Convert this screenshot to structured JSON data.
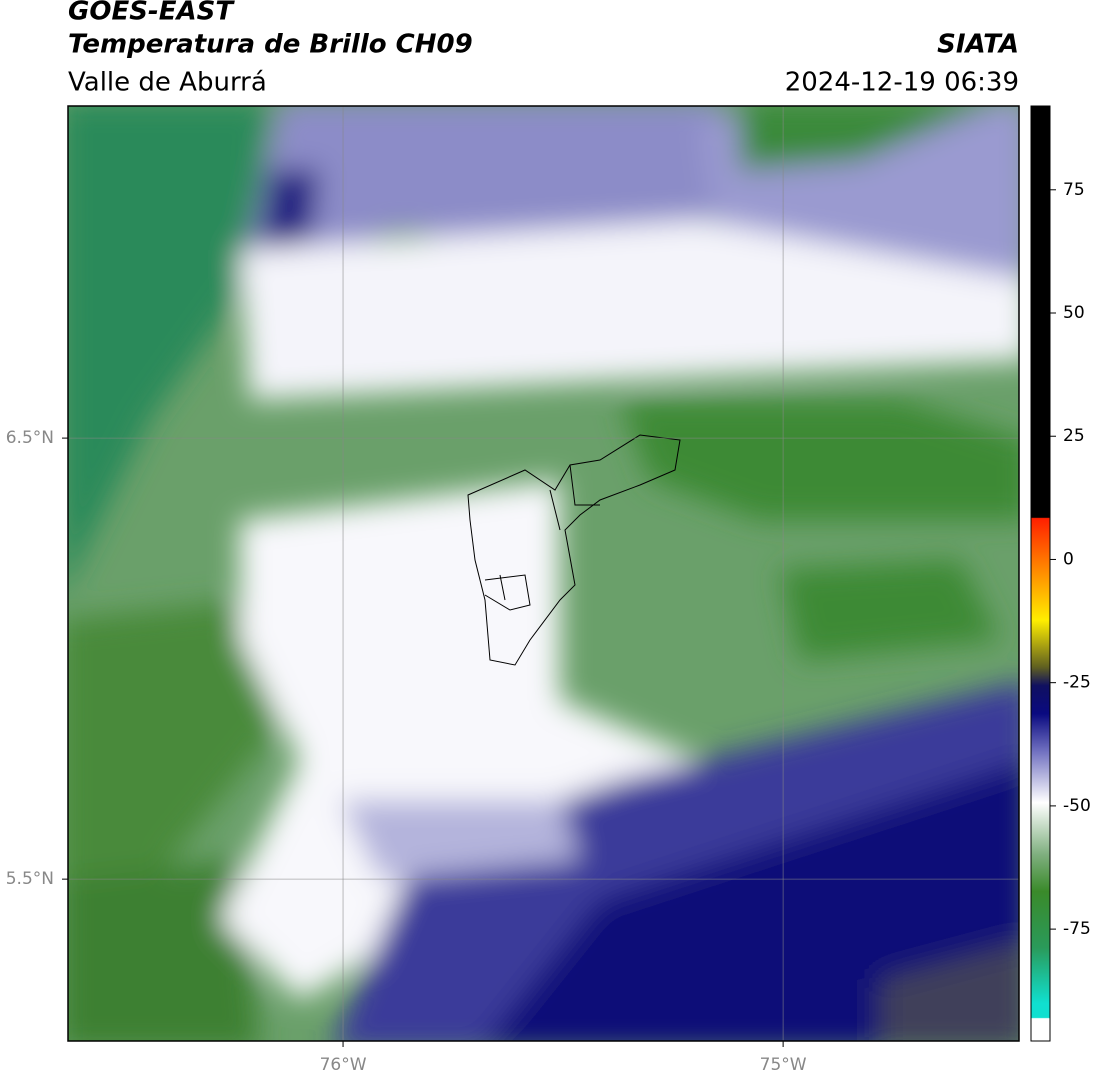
{
  "header": {
    "title": "GOES-EAST",
    "subtitle": "Temperatura de Brillo CH09",
    "source": "SIATA",
    "region": "Valle de Aburrá",
    "datetime": "2024-12-19 06:39"
  },
  "map": {
    "lat_range": [
      5.133,
      7.253
    ],
    "lon_range": [
      -76.625,
      -74.464
    ],
    "lat_ticks": [
      {
        "value": 6.5,
        "label": "6.5°N"
      },
      {
        "value": 5.5,
        "label": "5.5°N"
      }
    ],
    "lon_ticks": [
      {
        "value": -76,
        "label": "76°W"
      },
      {
        "value": -75,
        "label": "75°W"
      }
    ]
  },
  "colorbar": {
    "range": [
      -97.7,
      92
    ],
    "ticks": [
      75,
      50,
      25,
      0,
      -25,
      -50,
      -75
    ]
  }
}
